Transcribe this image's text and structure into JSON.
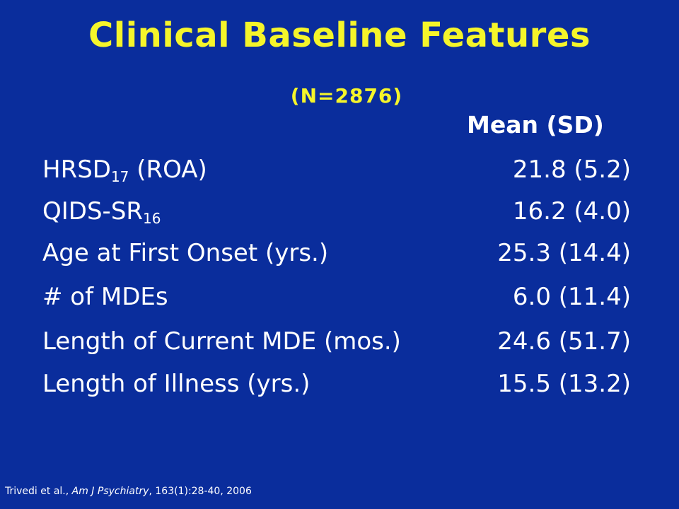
{
  "slide": {
    "title": "Clinical Baseline Features",
    "subtitle": "(N=2876)",
    "column_header": "Mean (SD)",
    "rows": [
      {
        "label": "HRSD",
        "label_sub": "17",
        "label_suffix": " (ROA)",
        "value": "21.8 (5.2)"
      },
      {
        "label": "QIDS-SR",
        "label_sub": "16",
        "label_suffix": "",
        "value": "16.2 (4.0)"
      },
      {
        "label": "Age at First Onset (yrs.)",
        "label_sub": "",
        "label_suffix": "",
        "value": "25.3 (14.4)"
      },
      {
        "label": "# of MDEs",
        "label_sub": "",
        "label_suffix": "",
        "value": "6.0 (11.4)"
      },
      {
        "label": "Length of Current MDE (mos.)",
        "label_sub": "",
        "label_suffix": "",
        "value": "24.6 (51.7)"
      },
      {
        "label": "Length of Illness (yrs.)",
        "label_sub": "",
        "label_suffix": "",
        "value": "15.5 (13.2)"
      }
    ],
    "citation": {
      "authors": "Trivedi et al., ",
      "journal": "Am J Psychiatry",
      "details": ", 163(1):28-40, 2006"
    }
  },
  "colors": {
    "background": "#0a2d9c",
    "title": "#f5f52a",
    "text": "#ffffff"
  }
}
